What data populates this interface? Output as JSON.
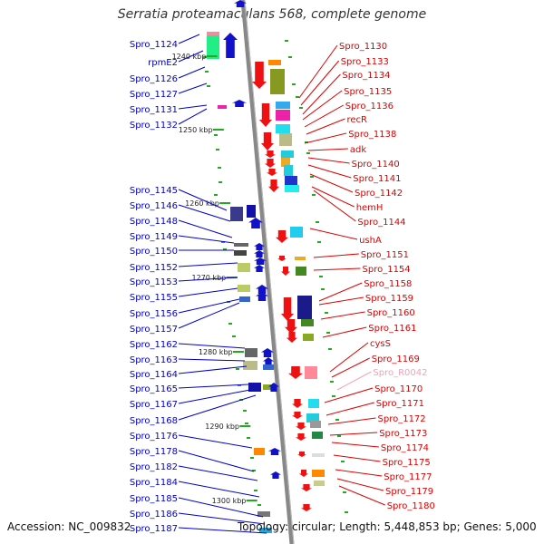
{
  "title": "Serratia proteamaculans 568, complete genome",
  "footer": {
    "accession": "Accession: NC_009832",
    "stats": "Topology: circular; Length: 5,448,853 bp; Genes: 5,000"
  },
  "colors": {
    "left_label": "#0000cc",
    "right_label": "#dd0000",
    "rna_label": "#f4a0b8",
    "backbone": "#888888"
  },
  "scale_ticks": [
    "1240 kbp",
    "1250 kbp",
    "1260 kbp",
    "1270 kbp",
    "1280 kbp",
    "1290 kbp",
    "1300 kbp"
  ],
  "left_genes": [
    "Spro_1124",
    "rpmE2",
    "Spro_1126",
    "Spro_1127",
    "Spro_1131",
    "Spro_1132",
    "Spro_1145",
    "Spro_1146",
    "Spro_1148",
    "Spro_1149",
    "Spro_1150",
    "Spro_1152",
    "Spro_1153",
    "Spro_1155",
    "Spro_1156",
    "Spro_1157",
    "Spro_1162",
    "Spro_1163",
    "Spro_1164",
    "Spro_1165",
    "Spro_1167",
    "Spro_1168",
    "Spro_1176",
    "Spro_1178",
    "Spro_1182",
    "Spro_1184",
    "Spro_1185",
    "Spro_1186",
    "Spro_1187"
  ],
  "right_genes": [
    "Spro_1130",
    "Spro_1133",
    "Spro_1134",
    "Spro_1135",
    "Spro_1136",
    "recR",
    "Spro_1138",
    "adk",
    "Spro_1140",
    "Spro_1141",
    "Spro_1142",
    "hemH",
    "Spro_1144",
    "ushA",
    "Spro_1151",
    "Spro_1154",
    "Spro_1158",
    "Spro_1159",
    "Spro_1160",
    "Spro_1161",
    "cysS",
    "Spro_1169",
    "Spro_R0042",
    "Spro_1170",
    "Spro_1171",
    "Spro_1172",
    "Spro_1173",
    "Spro_1174",
    "Spro_1175",
    "Spro_1177",
    "Spro_1179",
    "Spro_1180"
  ],
  "rna_genes": [
    "Spro_R0042"
  ]
}
